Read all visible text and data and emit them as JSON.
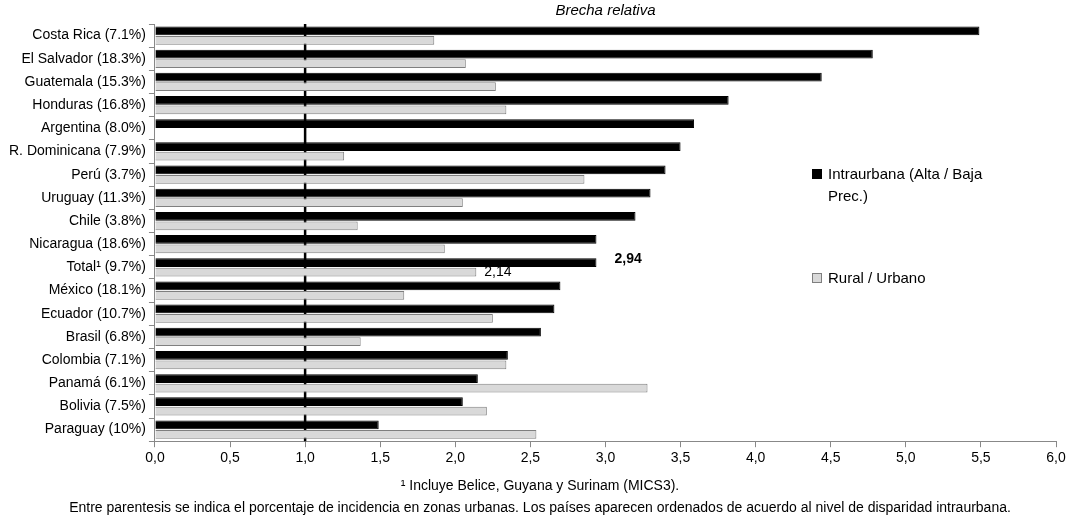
{
  "chart_data": {
    "type": "bar",
    "orientation": "horizontal",
    "title": "Brecha relativa",
    "categories": [
      "Costa Rica (7.1%)",
      "El Salvador (18.3%)",
      "Guatemala (15.3%)",
      "Honduras (16.8%)",
      "Argentina (8.0%)",
      "R. Dominicana (7.9%)",
      "Perú (3.7%)",
      "Uruguay (11.3%)",
      "Chile (3.8%)",
      "Nicaragua (18.6%)",
      "Total¹ (9.7%)",
      "México (18.1%)",
      "Ecuador (10.7%)",
      "Brasil (6.8%)",
      "Colombia (7.1%)",
      "Panamá (6.1%)",
      "Bolivia (7.5%)",
      "Paraguay (10%)"
    ],
    "series": [
      {
        "name": "Intraurbana (Alta / Baja Prec.)",
        "color": "#000000",
        "values": [
          5.49,
          4.78,
          4.44,
          3.82,
          3.59,
          3.5,
          3.4,
          3.3,
          3.2,
          2.94,
          2.94,
          2.7,
          2.66,
          2.57,
          2.35,
          2.15,
          2.05,
          1.49
        ],
        "value_labels": [
          null,
          null,
          null,
          null,
          null,
          null,
          null,
          null,
          null,
          null,
          "2,94",
          null,
          null,
          null,
          null,
          null,
          null,
          null
        ]
      },
      {
        "name": "Rural / Urbano",
        "color": "#d9d9d9",
        "values": [
          1.86,
          2.07,
          2.27,
          2.34,
          null,
          1.26,
          2.86,
          2.05,
          1.35,
          1.93,
          2.14,
          1.66,
          2.25,
          1.37,
          2.34,
          3.28,
          2.21,
          2.54
        ],
        "value_labels": [
          null,
          null,
          null,
          null,
          null,
          null,
          null,
          null,
          null,
          null,
          "2,14",
          null,
          null,
          null,
          null,
          null,
          null,
          null
        ]
      }
    ],
    "xlim": [
      0,
      6
    ],
    "xticks": [
      {
        "value": 0,
        "label": "0,0"
      },
      {
        "value": 0.5,
        "label": "0,5"
      },
      {
        "value": 1,
        "label": "1,0"
      },
      {
        "value": 1.5,
        "label": "1,5"
      },
      {
        "value": 2,
        "label": "2,0"
      },
      {
        "value": 2.5,
        "label": "2,5"
      },
      {
        "value": 3,
        "label": "3,0"
      },
      {
        "value": 3.5,
        "label": "3,5"
      },
      {
        "value": 4,
        "label": "4,0"
      },
      {
        "value": 4.5,
        "label": "4,5"
      },
      {
        "value": 5,
        "label": "5,0"
      },
      {
        "value": 5.5,
        "label": "5,5"
      },
      {
        "value": 6,
        "label": "6,0"
      }
    ],
    "ref_lines": [
      {
        "axis": "x",
        "value": 1,
        "color": "#000000"
      }
    ],
    "grid": false,
    "legend": "right",
    "annotations": [
      "¹ Incluye Belice, Guyana y Surinam (MICS3).",
      "Entre parentesis se indica el porcentaje de incidencia en zonas urbanas. Los países aparecen ordenados de acuerdo al nivel de disparidad intraurbana."
    ]
  }
}
